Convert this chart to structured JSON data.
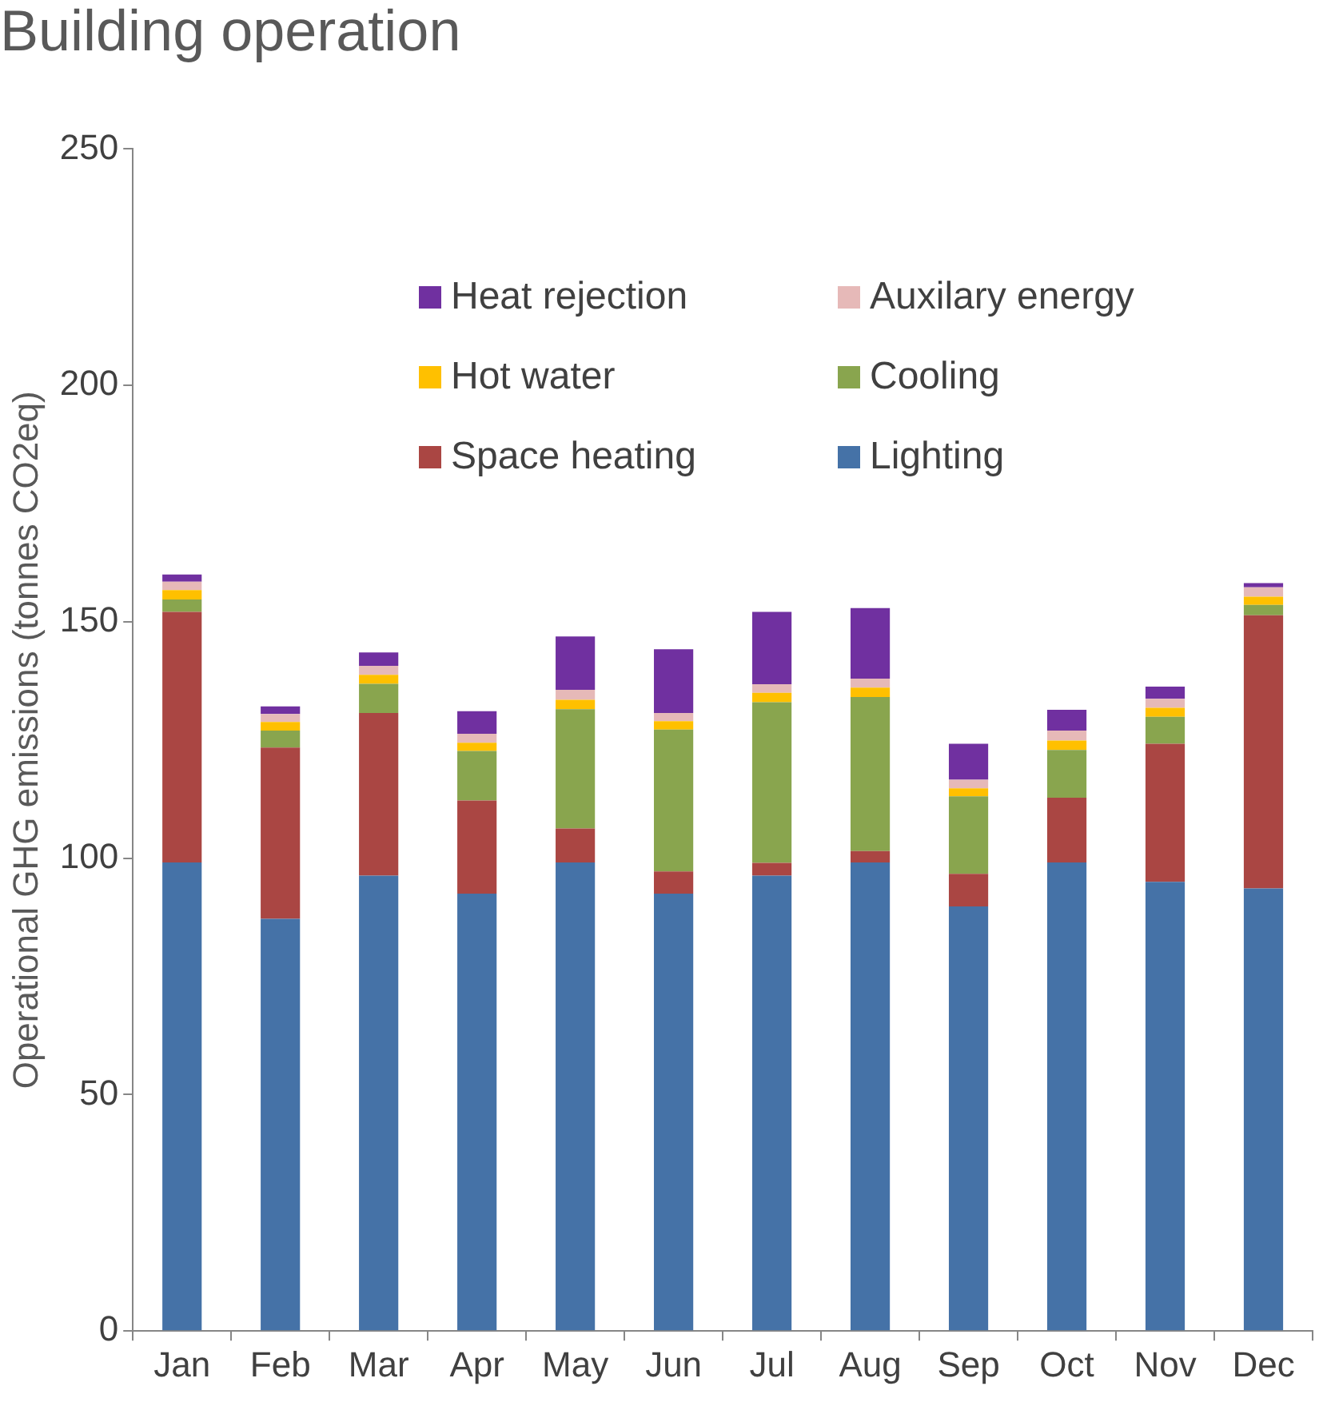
{
  "chart_data": {
    "type": "bar",
    "title": "Building operation",
    "ylabel": "Operational GHG emissions (tonnes CO2eq)",
    "categories": [
      "Jan",
      "Feb",
      "Mar",
      "Apr",
      "May",
      "Jun",
      "Jul",
      "Aug",
      "Sep",
      "Oct",
      "Nov",
      "Dec"
    ],
    "stacked": true,
    "ylim": [
      0,
      250
    ],
    "yticks": [
      0,
      50,
      100,
      150,
      200,
      250
    ],
    "grid": false,
    "legend": "top",
    "series": [
      {
        "name": "Lighting",
        "color": "#4572a7",
        "values": [
          99.1,
          87.2,
          96.3,
          92.5,
          99.1,
          92.5,
          96.3,
          99.1,
          89.8,
          99.1,
          95.0,
          93.6
        ]
      },
      {
        "name": "Space heating",
        "color": "#aa4643",
        "values": [
          53.0,
          36.2,
          34.4,
          19.7,
          7.2,
          4.7,
          2.7,
          2.4,
          6.9,
          13.7,
          29.2,
          57.8
        ]
      },
      {
        "name": "Cooling",
        "color": "#89a54e",
        "values": [
          2.6,
          3.6,
          6.2,
          10.5,
          25.2,
          30.0,
          34.0,
          32.6,
          16.4,
          10.1,
          5.7,
          2.2
        ]
      },
      {
        "name": "Hot water",
        "color": "#ffc000",
        "values": [
          2.0,
          1.8,
          1.9,
          1.7,
          2.0,
          1.8,
          2.0,
          2.0,
          1.7,
          2.0,
          1.9,
          1.7
        ]
      },
      {
        "name": "Auxilary energy",
        "color": "#e6b9b8",
        "values": [
          1.8,
          1.7,
          1.9,
          1.9,
          2.1,
          1.7,
          1.8,
          1.9,
          1.8,
          2.1,
          1.9,
          2.0
        ]
      },
      {
        "name": "Heat rejection",
        "color": "#7030a0",
        "values": [
          1.5,
          1.6,
          2.8,
          4.8,
          11.3,
          13.5,
          15.3,
          14.9,
          7.6,
          4.4,
          2.6,
          0.9
        ]
      }
    ]
  }
}
